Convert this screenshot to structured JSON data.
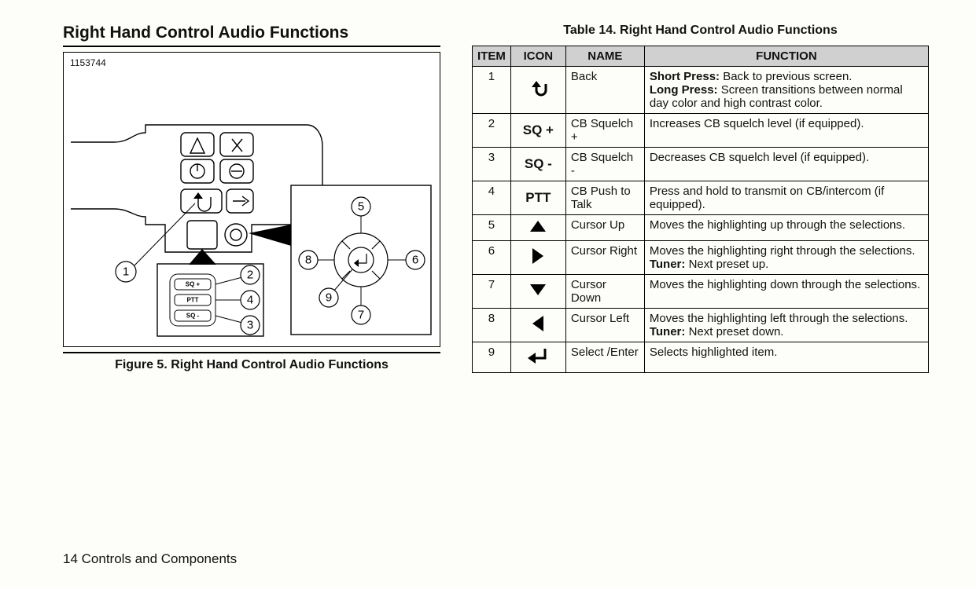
{
  "section_title": "Right Hand Control Audio Functions",
  "figure": {
    "id": "1153744",
    "caption": "Figure 5. Right Hand Control Audio Functions",
    "sq_plus": "SQ +",
    "sq_minus": "SQ -",
    "ptt": "PTT",
    "callouts": [
      "1",
      "2",
      "3",
      "4",
      "5",
      "6",
      "7",
      "8",
      "9"
    ]
  },
  "table": {
    "title": "Table 14. Right Hand Control Audio Functions",
    "headers": [
      "ITEM",
      "ICON",
      "NAME",
      "FUNCTION"
    ],
    "header_bg": "#d0d0d0",
    "rows": [
      {
        "item": "1",
        "icon": "back",
        "name": "Back",
        "function_html": "<b>Short Press:</b> Back to previous screen.<br><b>Long Press:</b> Screen transitions between normal day color and high contrast color."
      },
      {
        "item": "2",
        "icon": "sq_plus",
        "icon_text": "SQ +",
        "name": "CB Squelch +",
        "function_html": "Increases CB squelch level (if equipped)."
      },
      {
        "item": "3",
        "icon": "sq_minus",
        "icon_text": "SQ -",
        "name": "CB Squelch -",
        "function_html": "Decreases CB squelch level (if equipped)."
      },
      {
        "item": "4",
        "icon": "ptt",
        "icon_text": "PTT",
        "name": "CB Push to Talk",
        "function_html": "Press and hold to transmit on CB/intercom (if equipped)."
      },
      {
        "item": "5",
        "icon": "up",
        "name": "Cursor Up",
        "function_html": "Moves the highlighting up through the selections."
      },
      {
        "item": "6",
        "icon": "right",
        "name": "Cursor Right",
        "function_html": "Moves the highlighting right through the selections. <b>Tuner:</b> Next preset up."
      },
      {
        "item": "7",
        "icon": "down",
        "name": "Cursor Down",
        "function_html": "Moves the highlighting down through the selections."
      },
      {
        "item": "8",
        "icon": "left",
        "name": "Cursor Left",
        "function_html": "Moves the highlighting left through the selections. <b>Tuner:</b> Next preset down."
      },
      {
        "item": "9",
        "icon": "enter",
        "name": "Select /Enter",
        "function_html": "Selects highlighted item."
      }
    ]
  },
  "footer": "14 Controls and Components",
  "colors": {
    "page_bg": "#fdfdf9",
    "line": "#000000"
  }
}
